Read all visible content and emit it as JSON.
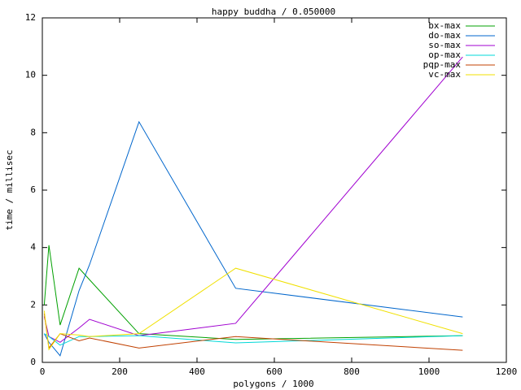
{
  "chart_data": {
    "type": "line",
    "title": "happy buddha / 0.050000",
    "x_label": "polygons / 1000",
    "y_label": "time / millisec",
    "x": [
      5,
      17,
      46,
      95,
      122,
      250,
      500,
      1087
    ],
    "series": [
      {
        "name": "bx-max",
        "color": "#00a000",
        "values": [
          2.0,
          4.08,
          1.3,
          3.28,
          2.88,
          1.0,
          0.8,
          0.93
        ]
      },
      {
        "name": "do-max",
        "color": "#0066cc",
        "values": [
          1.0,
          0.7,
          0.23,
          2.5,
          3.4,
          8.38,
          2.58,
          1.58
        ]
      },
      {
        "name": "so-max",
        "color": "#a000d0",
        "values": [
          1.6,
          0.9,
          0.7,
          1.2,
          1.5,
          0.93,
          1.36,
          10.64
        ]
      },
      {
        "name": "op-max",
        "color": "#00d8d8",
        "values": [
          1.0,
          0.9,
          0.6,
          0.9,
          0.9,
          0.93,
          0.68,
          0.93
        ]
      },
      {
        "name": "pqp-max",
        "color": "#c04000",
        "values": [
          1.7,
          0.5,
          1.0,
          0.75,
          0.85,
          0.5,
          0.9,
          0.42
        ]
      },
      {
        "name": "vc-max",
        "color": "#f0e000",
        "values": [
          1.8,
          0.45,
          1.0,
          0.95,
          0.9,
          1.0,
          3.28,
          1.0
        ]
      }
    ],
    "xlim": [
      0,
      1200
    ],
    "xticks": [
      0,
      200,
      400,
      600,
      800,
      1000,
      1200
    ],
    "ylim": [
      0,
      12
    ],
    "yticks": [
      0,
      2,
      4,
      6,
      8,
      10,
      12
    ],
    "legend": "top-right"
  }
}
